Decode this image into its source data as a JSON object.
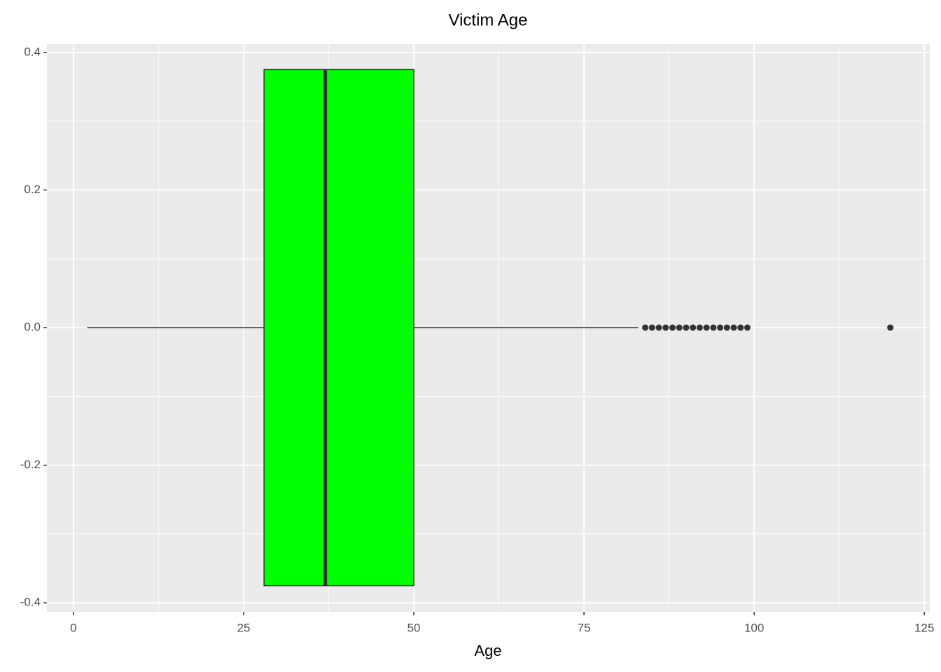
{
  "chart_data": {
    "type": "box",
    "title": "Victim Age",
    "x_label": "Age",
    "whisker_low": 2,
    "q1": 28,
    "median": 37,
    "q3": 50,
    "whisker_high": 83,
    "outliers": [
      84,
      85,
      86,
      87,
      88,
      89,
      90,
      91,
      92,
      93,
      94,
      95,
      96,
      97,
      98,
      99,
      120
    ],
    "box_y": [
      -0.375,
      0.375
    ],
    "center_y": 0,
    "color": "#00ff00",
    "line_color": "#333333",
    "xlim": [
      -3.9,
      125.8
    ],
    "xticks": [
      0,
      25,
      50,
      75,
      100,
      125
    ],
    "ylim": [
      -0.413,
      0.412
    ],
    "yticks": [
      -0.4,
      -0.2,
      {
        "value": 0,
        "label": "0.0"
      },
      0.2,
      0.4
    ],
    "grid": true,
    "minor_grid": true
  }
}
